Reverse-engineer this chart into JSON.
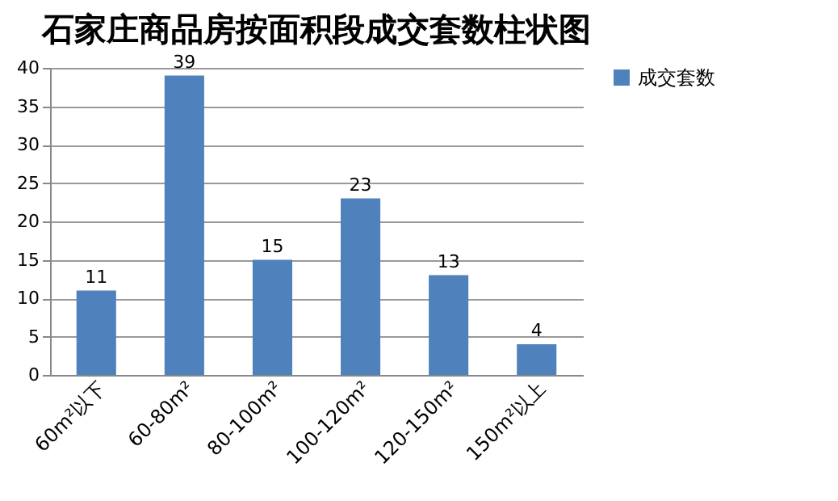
{
  "chart_data": {
    "type": "bar",
    "title": "石家庄商品房按面积段成交套数柱状图",
    "categories": [
      "60m²以下",
      "60-80m²",
      "80-100m²",
      "100-120m²",
      "120-150m²",
      "150m²以上"
    ],
    "series": [
      {
        "name": "成交套数",
        "color": "#4f81bd",
        "values": [
          11,
          39,
          15,
          23,
          13,
          4
        ]
      }
    ],
    "ylim": [
      0,
      40
    ],
    "yticks": [
      0,
      5,
      10,
      15,
      20,
      25,
      30,
      35,
      40
    ],
    "grid": "y",
    "legend": "right",
    "data_labels": true
  }
}
